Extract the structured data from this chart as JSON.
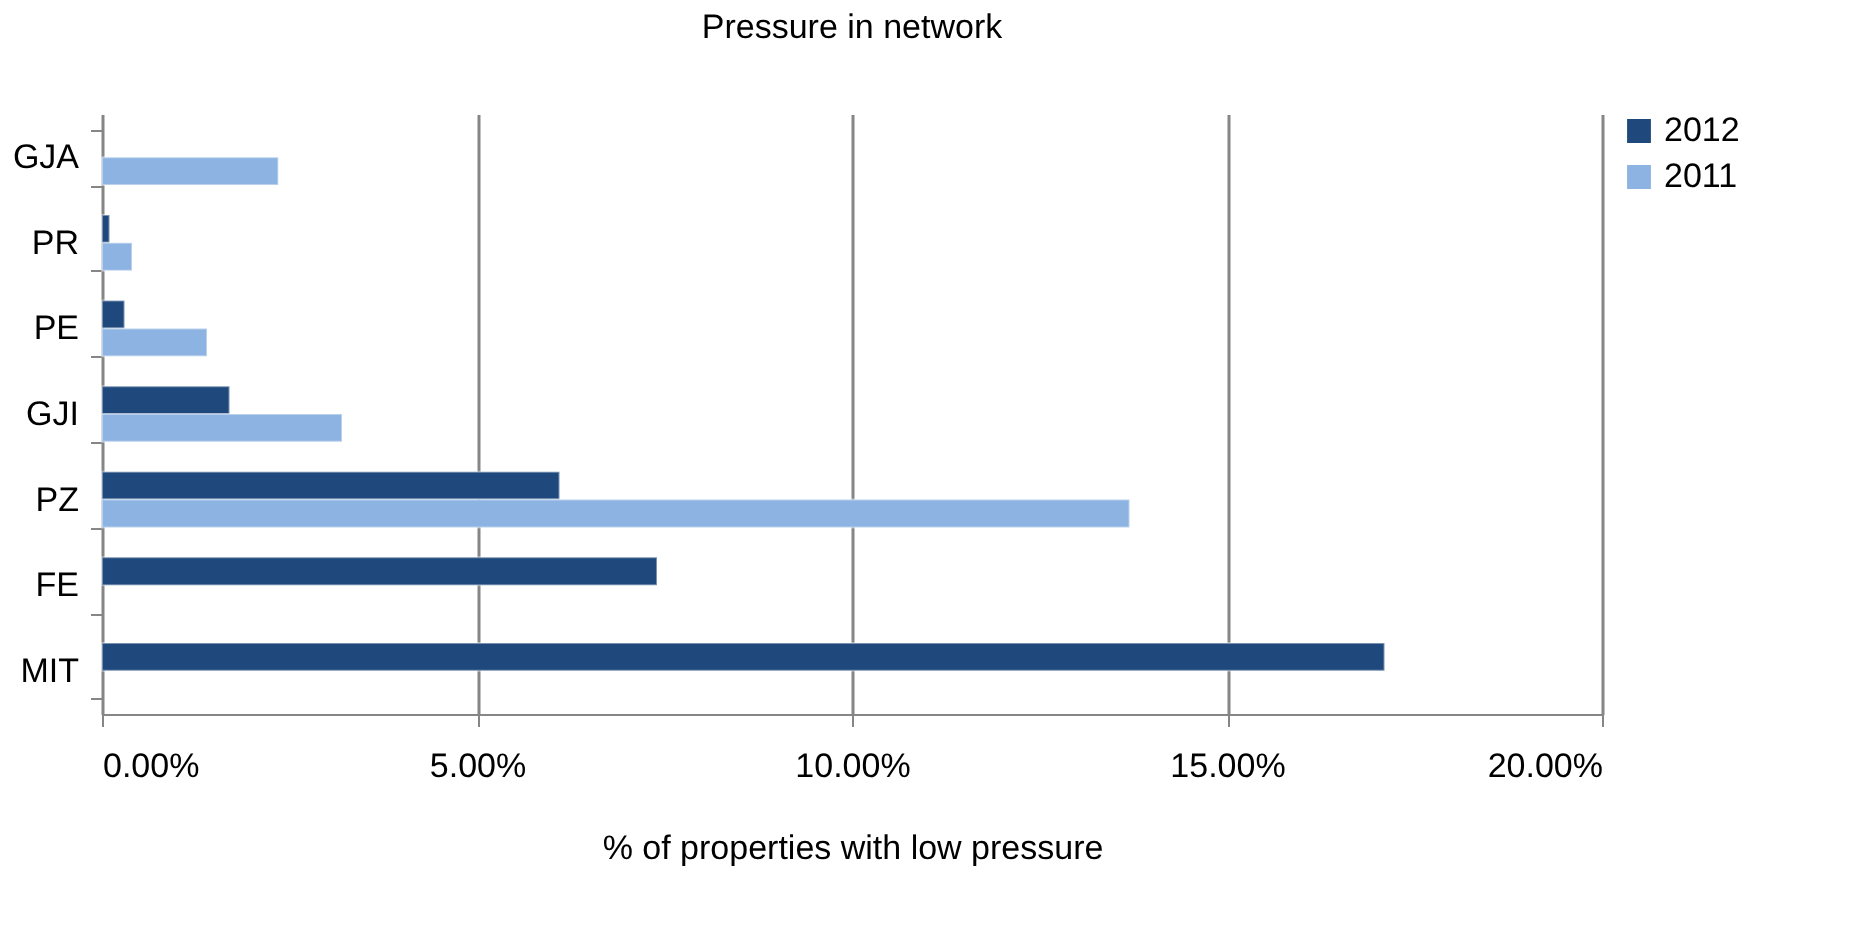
{
  "chart_data": {
    "type": "bar",
    "orientation": "horizontal",
    "title": "Pressure in network",
    "xlabel": "%  of properties with low pressure",
    "categories": [
      "GJA",
      "PR",
      "PE",
      "GJI",
      "PZ",
      "FE",
      "MIT"
    ],
    "series": [
      {
        "name": "2012",
        "color": "#1f497d",
        "values": [
          null,
          0.1,
          0.3,
          1.7,
          6.1,
          7.4,
          17.1
        ]
      },
      {
        "name": "2011",
        "color": "#8db3e2",
        "values": [
          2.35,
          0.4,
          1.4,
          3.2,
          13.7,
          null,
          null
        ]
      }
    ],
    "xlim": [
      0,
      20
    ],
    "xticks": [
      {
        "value": 0,
        "label": "0.00%"
      },
      {
        "value": 5,
        "label": "5.00%"
      },
      {
        "value": 10,
        "label": "10.00%"
      },
      {
        "value": 15,
        "label": "15.00%"
      },
      {
        "value": 20,
        "label": "20.00%"
      }
    ],
    "grid": "x",
    "legend": "right"
  }
}
